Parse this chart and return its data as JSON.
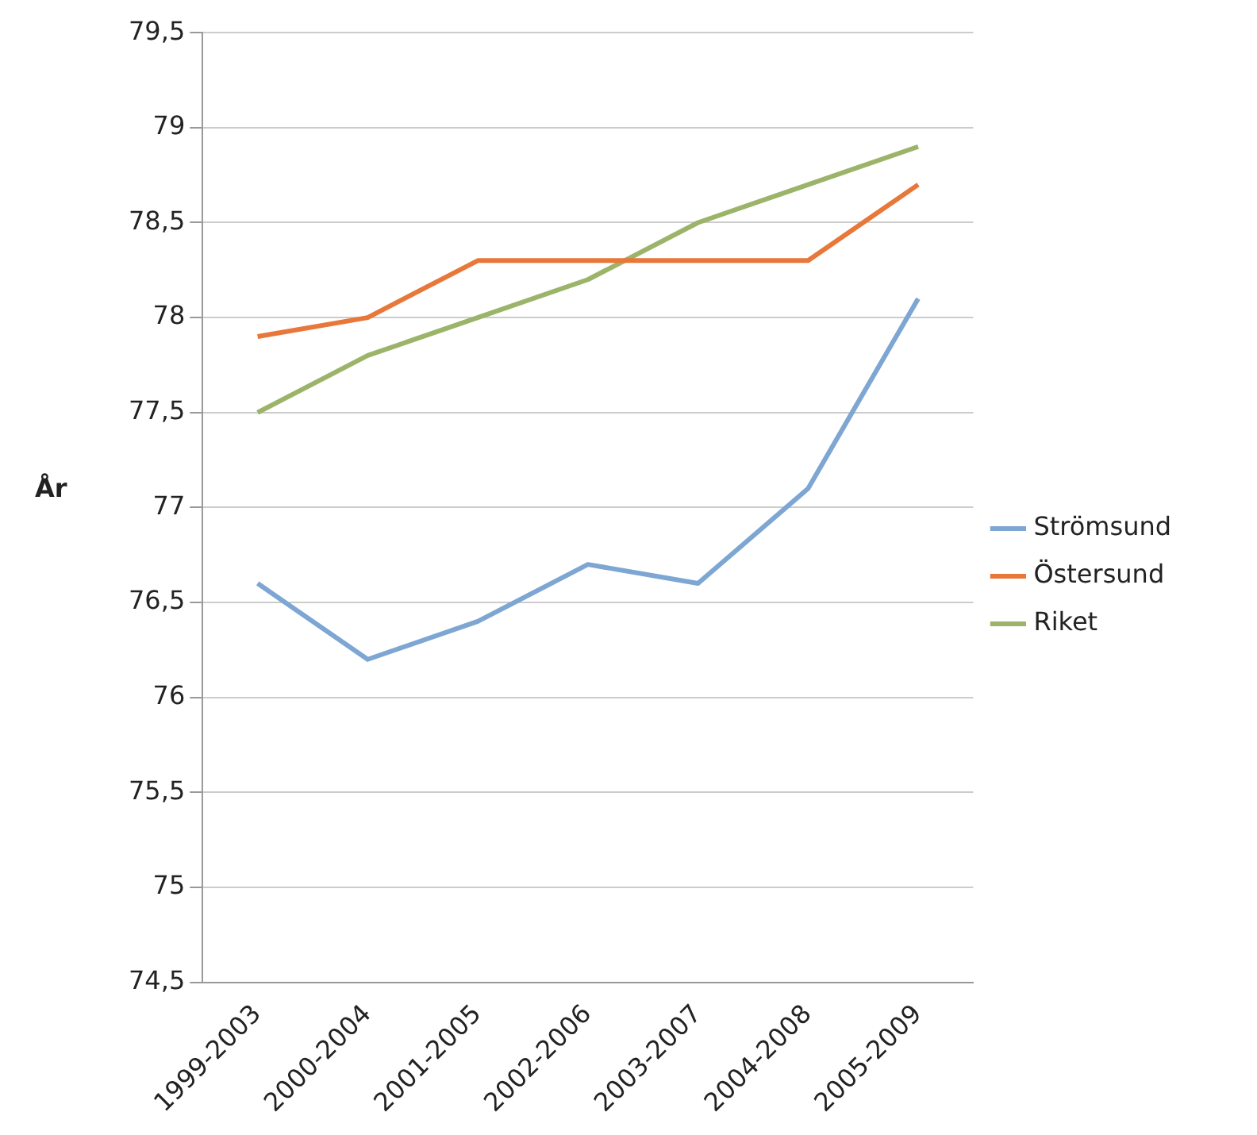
{
  "chart_data": {
    "type": "line",
    "ylabel": "År",
    "categories": [
      "1999-2003",
      "2000-2004",
      "2001-2005",
      "2002-2006",
      "2003-2007",
      "2004-2008",
      "2005-2009"
    ],
    "series": [
      {
        "name": "Strömsund",
        "color": "#7ea6d3",
        "values": [
          76.6,
          76.2,
          76.4,
          76.7,
          76.6,
          77.1,
          78.1
        ]
      },
      {
        "name": "Östersund",
        "color": "#e8773a",
        "values": [
          77.9,
          78.0,
          78.3,
          78.3,
          78.3,
          78.3,
          78.7
        ]
      },
      {
        "name": "Riket",
        "color": "#9cb46a",
        "values": [
          77.5,
          77.8,
          78.0,
          78.2,
          78.5,
          78.7,
          78.9
        ]
      }
    ],
    "ylim": [
      74.5,
      79.5
    ],
    "yticks": [
      {
        "value": 74.5,
        "label": "74,5"
      },
      75,
      {
        "value": 75.5,
        "label": "75,5"
      },
      76,
      {
        "value": 76.5,
        "label": "76,5"
      },
      77,
      {
        "value": 77.5,
        "label": "77,5"
      },
      78,
      {
        "value": 78.5,
        "label": "78,5"
      },
      79,
      {
        "value": 79.5,
        "label": "79,5"
      }
    ],
    "grid": "y",
    "legend": "right",
    "marker": "none",
    "line_style": "solid"
  }
}
